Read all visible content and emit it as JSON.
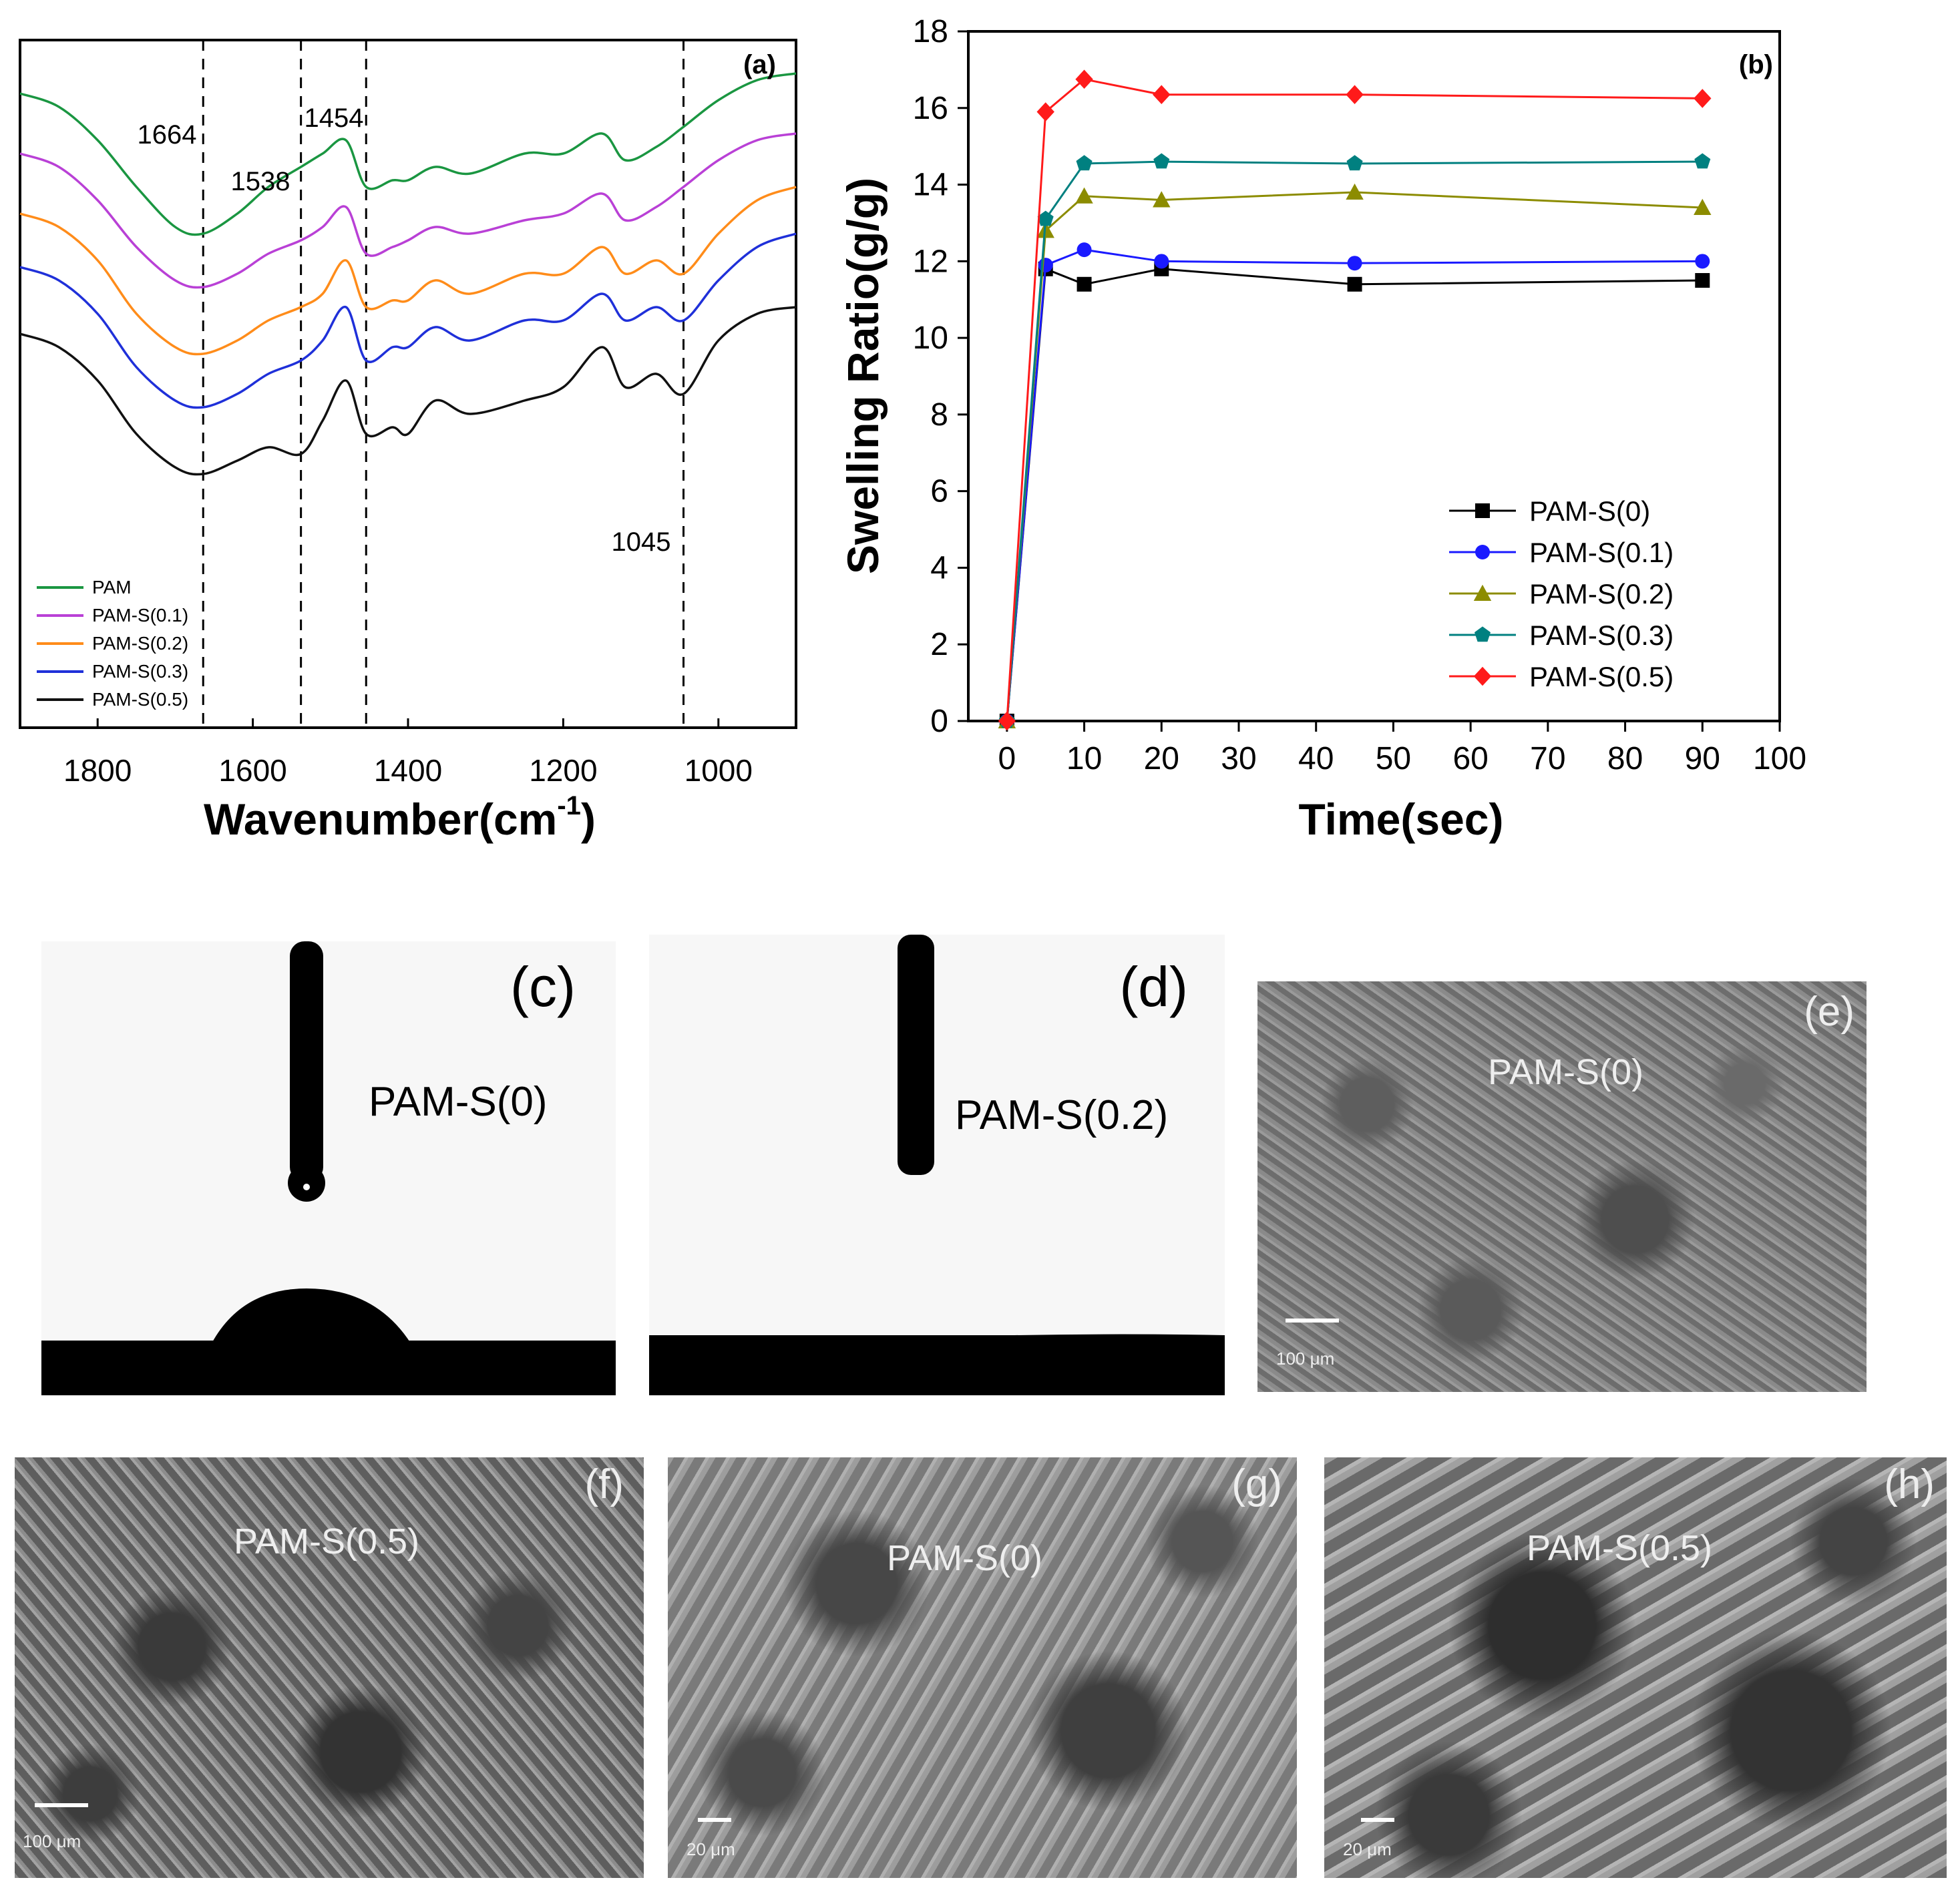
{
  "chart_data": [
    {
      "panel": "(a)",
      "type": "line",
      "xlabel": "Wavenumber(cm",
      "xlabel_sup": "-1",
      "xlabel_close": ")",
      "xlim": [
        1900,
        900
      ],
      "xticks": [
        1800,
        1600,
        1400,
        1200,
        1000
      ],
      "ylabel": "",
      "reference_lines": [
        1664,
        1538,
        1454,
        1045
      ],
      "annotations": [
        "1664",
        "1538",
        "1454",
        "1045"
      ],
      "x": [
        1900,
        1850,
        1800,
        1750,
        1700,
        1664,
        1620,
        1580,
        1538,
        1510,
        1480,
        1454,
        1420,
        1400,
        1365,
        1320,
        1250,
        1200,
        1150,
        1120,
        1080,
        1045,
        1000,
        950,
        900
      ],
      "series": [
        {
          "name": "PAM",
          "color": "#1a9641",
          "values": [
            8.6,
            8.4,
            7.9,
            7.2,
            6.6,
            6.5,
            6.8,
            7.2,
            7.5,
            7.7,
            7.9,
            7.2,
            7.3,
            7.3,
            7.5,
            7.4,
            7.7,
            7.7,
            8.0,
            7.6,
            7.8,
            8.1,
            8.5,
            8.8,
            8.9
          ]
        },
        {
          "name": "PAM-S(0.1)",
          "color": "#b940d6",
          "values": [
            7.7,
            7.5,
            7.0,
            6.3,
            5.8,
            5.7,
            5.9,
            6.2,
            6.4,
            6.6,
            6.9,
            6.2,
            6.3,
            6.4,
            6.6,
            6.5,
            6.7,
            6.8,
            7.1,
            6.7,
            6.9,
            7.2,
            7.6,
            7.9,
            8.0
          ]
        },
        {
          "name": "PAM-S(0.2)",
          "color": "#ff8c1a",
          "values": [
            6.8,
            6.6,
            6.1,
            5.3,
            4.8,
            4.7,
            4.9,
            5.2,
            5.4,
            5.6,
            6.1,
            5.4,
            5.5,
            5.5,
            5.8,
            5.6,
            5.9,
            5.9,
            6.3,
            5.9,
            6.1,
            5.9,
            6.5,
            7.0,
            7.2
          ]
        },
        {
          "name": "PAM-S(0.3)",
          "color": "#1f30d9",
          "values": [
            6.0,
            5.8,
            5.3,
            4.5,
            4.0,
            3.9,
            4.1,
            4.4,
            4.6,
            4.9,
            5.4,
            4.6,
            4.8,
            4.8,
            5.1,
            4.9,
            5.2,
            5.2,
            5.6,
            5.2,
            5.4,
            5.2,
            5.8,
            6.3,
            6.5
          ]
        },
        {
          "name": "PAM-S(0.5)",
          "color": "#111111",
          "values": [
            5.0,
            4.8,
            4.3,
            3.5,
            3.0,
            2.9,
            3.1,
            3.3,
            3.2,
            3.7,
            4.3,
            3.5,
            3.6,
            3.5,
            4.0,
            3.8,
            4.0,
            4.2,
            4.8,
            4.2,
            4.4,
            4.1,
            4.9,
            5.3,
            5.4
          ]
        }
      ]
    },
    {
      "panel": "(b)",
      "type": "line",
      "xlabel": "Time(sec)",
      "ylabel": "Swelling Ratio(g/g)",
      "xlim": [
        -5,
        100
      ],
      "ylim": [
        0,
        18
      ],
      "xticks": [
        0,
        10,
        20,
        30,
        40,
        50,
        60,
        70,
        80,
        90,
        100
      ],
      "yticks": [
        0,
        2,
        4,
        6,
        8,
        10,
        12,
        14,
        16,
        18
      ],
      "legend_position": "lower-right",
      "x": [
        0,
        5,
        10,
        20,
        45,
        90
      ],
      "series": [
        {
          "name": "PAM-S(0)",
          "color": "#000000",
          "marker": "square",
          "values": [
            0,
            11.8,
            11.4,
            11.8,
            11.4,
            11.5
          ]
        },
        {
          "name": "PAM-S(0.1)",
          "color": "#1a1aff",
          "marker": "circle",
          "values": [
            0,
            11.9,
            12.3,
            12.0,
            11.95,
            12.0
          ]
        },
        {
          "name": "PAM-S(0.2)",
          "color": "#8c8c00",
          "marker": "triangle",
          "values": [
            0,
            12.8,
            13.7,
            13.6,
            13.8,
            13.4
          ]
        },
        {
          "name": "PAM-S(0.3)",
          "color": "#008080",
          "marker": "pentagon",
          "values": [
            0,
            13.1,
            14.55,
            14.6,
            14.55,
            14.6
          ]
        },
        {
          "name": "PAM-S(0.5)",
          "color": "#ff1a1a",
          "marker": "diamond",
          "values": [
            0,
            15.9,
            16.75,
            16.35,
            16.35,
            16.25
          ]
        }
      ]
    }
  ],
  "photos": {
    "c": {
      "label": "(c)",
      "sample": "PAM-S(0)"
    },
    "d": {
      "label": "(d)",
      "sample": "PAM-S(0.2)"
    },
    "e": {
      "label": "(e)",
      "sample": "PAM-S(0)",
      "scale": "100 μm"
    },
    "f": {
      "label": "(f)",
      "sample": "PAM-S(0.5)",
      "scale": "100 μm"
    },
    "g": {
      "label": "(g)",
      "sample": "PAM-S(0)",
      "scale": "20 μm"
    },
    "h": {
      "label": "(h)",
      "sample": "PAM-S(0.5)",
      "scale": "20 μm"
    }
  }
}
